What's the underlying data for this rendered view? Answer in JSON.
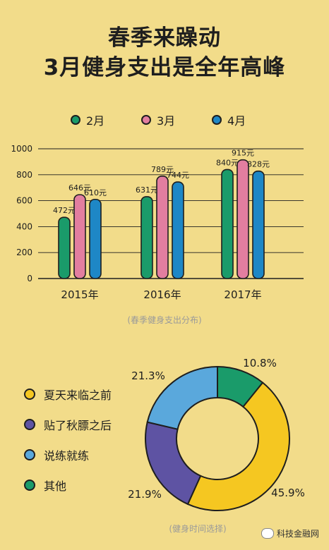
{
  "title_line1": "春季来躁动",
  "title_line2": "3月健身支出是全年高峰",
  "colors": {
    "feb": "#1a9b6a",
    "mar": "#e27ea0",
    "apr": "#1e87c6",
    "pie_yellow": "#f5c721",
    "pie_purple": "#5e53a3",
    "pie_blue": "#5aa8dc",
    "pie_green": "#1a9b6a"
  },
  "legend_top": [
    "2月",
    "3月",
    "4月"
  ],
  "chart_data": [
    {
      "type": "bar",
      "categories": [
        "2015年",
        "2016年",
        "2017年"
      ],
      "series": [
        {
          "name": "2月",
          "values": [
            472,
            631,
            840
          ],
          "labels": [
            "472元",
            "631元",
            "840元"
          ]
        },
        {
          "name": "3月",
          "values": [
            646,
            789,
            915
          ],
          "labels": [
            "646元",
            "789元",
            "915元"
          ]
        },
        {
          "name": "4月",
          "values": [
            610,
            744,
            828
          ],
          "labels": [
            "610元",
            "744元",
            "828元"
          ]
        }
      ],
      "ylim": [
        0,
        1000
      ],
      "yticks": [
        "0",
        "200",
        "400",
        "600",
        "800",
        "1000"
      ],
      "grid": true,
      "caption": "(春季健身支出分布)"
    },
    {
      "type": "pie",
      "donut": true,
      "labels": [
        "夏天来临之前",
        "贴了秋膘之后",
        "说练就练",
        "其他"
      ],
      "values": [
        45.9,
        21.9,
        21.3,
        10.8
      ],
      "value_labels": [
        "45.9%",
        "21.9%",
        "21.3%",
        "10.8%"
      ],
      "caption": "(健身时间选择)"
    }
  ],
  "watermark": "科技金融网"
}
